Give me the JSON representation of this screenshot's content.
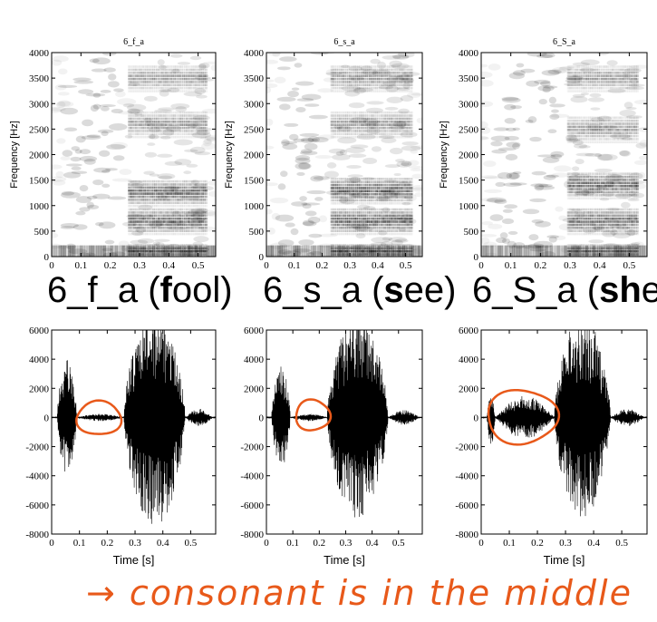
{
  "captions": [
    {
      "prefix": "6_f_a (",
      "bold": "f",
      "suffix": "ool)"
    },
    {
      "prefix": "6_s_a (",
      "bold": "s",
      "suffix": "ee)"
    },
    {
      "prefix": "6_S_a (",
      "bold": "sh",
      "suffix": "e)"
    }
  ],
  "handwritten_note": "→ consonant is in the middle",
  "annotation_color": "#e8591a",
  "chart_data": [
    {
      "type": "heatmap",
      "title": "6_f_a",
      "ylabel": "Frequency [Hz]",
      "xlabel": "",
      "xlim": [
        0,
        0.56
      ],
      "ylim": [
        0,
        4000
      ],
      "xticks": [
        0,
        0.1,
        0.2,
        0.3,
        0.4,
        0.5
      ],
      "yticks": [
        0,
        500,
        1000,
        1500,
        2000,
        2500,
        3000,
        3500,
        4000
      ],
      "consonant_span": [
        0.05,
        0.23
      ],
      "vowel_span": [
        0.26,
        0.53
      ],
      "formants": [
        100,
        700,
        1250,
        2600,
        3500
      ]
    },
    {
      "type": "heatmap",
      "title": "6_s_a",
      "ylabel": "Frequency [Hz]",
      "xlabel": "",
      "xlim": [
        0,
        0.56
      ],
      "ylim": [
        0,
        4000
      ],
      "xticks": [
        0,
        0.1,
        0.2,
        0.3,
        0.4,
        0.5
      ],
      "yticks": [
        0,
        500,
        1000,
        1500,
        2000,
        2500,
        3000,
        3500,
        4000
      ],
      "consonant_span": [
        0.05,
        0.2
      ],
      "vowel_span": [
        0.23,
        0.52
      ],
      "formants": [
        100,
        700,
        1300,
        2600,
        3500
      ]
    },
    {
      "type": "heatmap",
      "title": "6_S_a",
      "ylabel": "Frequency [Hz]",
      "xlabel": "",
      "xlim": [
        0,
        0.56
      ],
      "ylim": [
        0,
        4000
      ],
      "xticks": [
        0,
        0.1,
        0.2,
        0.3,
        0.4,
        0.5
      ],
      "yticks": [
        0,
        500,
        1000,
        1500,
        2000,
        2500,
        3000,
        3500,
        4000
      ],
      "consonant_span": [
        0.05,
        0.26
      ],
      "vowel_span": [
        0.29,
        0.53
      ],
      "formants": [
        100,
        700,
        1400,
        2500,
        3500
      ]
    },
    {
      "type": "line",
      "title": "",
      "xlabel": "Time [s]",
      "ylabel": "",
      "xlim": [
        0,
        0.59
      ],
      "ylim": [
        -8000,
        6000
      ],
      "xticks": [
        0,
        0.1,
        0.2,
        0.3,
        0.4,
        0.5
      ],
      "yticks": [
        -8000,
        -6000,
        -4000,
        -2000,
        0,
        2000,
        4000,
        6000
      ],
      "segments": [
        {
          "start": 0.02,
          "end": 0.09,
          "amp": 4000
        },
        {
          "start": 0.09,
          "end": 0.26,
          "amp": 250
        },
        {
          "start": 0.26,
          "end": 0.48,
          "amp": 7500
        },
        {
          "start": 0.48,
          "end": 0.58,
          "amp": 600
        }
      ],
      "annotation_ellipse": {
        "x": [
          0.09,
          0.25
        ],
        "y": [
          -1200,
          1100
        ]
      }
    },
    {
      "type": "line",
      "title": "",
      "xlabel": "Time [s]",
      "ylabel": "",
      "xlim": [
        0,
        0.59
      ],
      "ylim": [
        -8000,
        6000
      ],
      "xticks": [
        0,
        0.1,
        0.2,
        0.3,
        0.4,
        0.5
      ],
      "yticks": [
        -8000,
        -6000,
        -4000,
        -2000,
        0,
        2000,
        4000,
        6000
      ],
      "segments": [
        {
          "start": 0.02,
          "end": 0.09,
          "amp": 3500
        },
        {
          "start": 0.09,
          "end": 0.23,
          "amp": 250
        },
        {
          "start": 0.23,
          "end": 0.46,
          "amp": 7000
        },
        {
          "start": 0.46,
          "end": 0.58,
          "amp": 500
        }
      ],
      "annotation_ellipse": {
        "x": [
          0.11,
          0.24
        ],
        "y": [
          -900,
          1200
        ]
      }
    },
    {
      "type": "line",
      "title": "",
      "xlabel": "Time [s]",
      "ylabel": "",
      "xlim": [
        0,
        0.59
      ],
      "ylim": [
        -8000,
        6000
      ],
      "xticks": [
        0,
        0.1,
        0.2,
        0.3,
        0.4,
        0.5
      ],
      "yticks": [
        -8000,
        -6000,
        -4000,
        -2000,
        0,
        2000,
        4000,
        6000
      ],
      "segments": [
        {
          "start": 0.02,
          "end": 0.05,
          "amp": 2000
        },
        {
          "start": 0.05,
          "end": 0.26,
          "amp": 1500
        },
        {
          "start": 0.26,
          "end": 0.46,
          "amp": 7000
        },
        {
          "start": 0.46,
          "end": 0.58,
          "amp": 600
        }
      ],
      "annotation_ellipse": {
        "x": [
          0.02,
          0.27
        ],
        "y": [
          -1800,
          1900
        ]
      }
    }
  ]
}
